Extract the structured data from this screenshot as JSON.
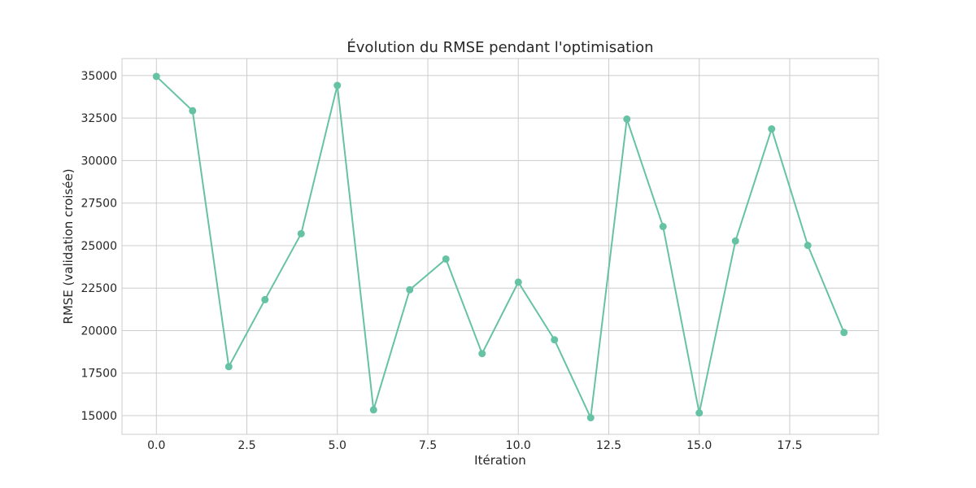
{
  "chart_data": {
    "type": "line",
    "title": "Évolution du RMSE pendant l'optimisation",
    "xlabel": "Itération",
    "ylabel": "RMSE (validation croisée)",
    "xlim": [
      -0.95,
      19.95
    ],
    "ylim": [
      13900,
      36000
    ],
    "x_ticks": [
      0.0,
      2.5,
      5.0,
      7.5,
      10.0,
      12.5,
      15.0,
      17.5
    ],
    "x_tick_labels": [
      "0.0",
      "2.5",
      "5.0",
      "7.5",
      "10.0",
      "12.5",
      "15.0",
      "17.5"
    ],
    "y_ticks": [
      15000,
      17500,
      20000,
      22500,
      25000,
      27500,
      30000,
      32500,
      35000
    ],
    "y_tick_labels": [
      "15000",
      "17500",
      "20000",
      "22500",
      "25000",
      "27500",
      "30000",
      "32500",
      "35000"
    ],
    "grid": true,
    "legend": false,
    "series": [
      {
        "color": "#66c2a5",
        "marker": "circle",
        "x": [
          0,
          1,
          2,
          3,
          4,
          5,
          6,
          7,
          8,
          9,
          10,
          11,
          12,
          13,
          14,
          15,
          16,
          17,
          18,
          19
        ],
        "values": [
          34950,
          32930,
          17880,
          21820,
          25700,
          34420,
          15340,
          22400,
          24210,
          18650,
          22850,
          19460,
          14880,
          32440,
          26120,
          15160,
          25270,
          31860,
          25010,
          19890
        ]
      }
    ]
  }
}
